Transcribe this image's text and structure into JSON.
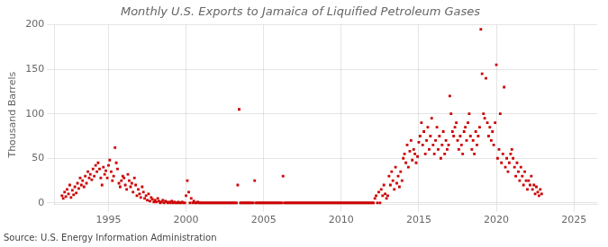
{
  "chart_data": {
    "type": "scatter",
    "title": "Monthly U.S. Exports to Jamaica of Liquified Petroleum Gases",
    "ylabel": "Thousand Barrels",
    "source": "Source: U.S. Energy Information Administration",
    "xlim": [
      1991.5,
      2026.5
    ],
    "ylim": [
      -2,
      200
    ],
    "xticks": [
      1995,
      2000,
      2005,
      2010,
      2015,
      2020,
      2025
    ],
    "yticks": [
      0,
      50,
      100,
      150,
      200
    ],
    "grid": true,
    "color": "#CC0000",
    "marker": "square",
    "x": [
      1992.0,
      1992.08,
      1992.17,
      1992.25,
      1992.33,
      1992.42,
      1992.5,
      1992.58,
      1992.67,
      1992.75,
      1992.83,
      1992.92,
      1993.0,
      1993.08,
      1993.17,
      1993.25,
      1993.33,
      1993.42,
      1993.5,
      1993.58,
      1993.67,
      1993.75,
      1993.83,
      1993.92,
      1994.0,
      1994.08,
      1994.17,
      1994.25,
      1994.33,
      1994.42,
      1994.5,
      1994.58,
      1994.67,
      1994.75,
      1994.83,
      1994.92,
      1995.0,
      1995.08,
      1995.17,
      1995.25,
      1995.33,
      1995.42,
      1995.5,
      1995.58,
      1995.67,
      1995.75,
      1995.83,
      1995.92,
      1996.0,
      1996.08,
      1996.17,
      1996.25,
      1996.33,
      1996.42,
      1996.5,
      1996.58,
      1996.67,
      1996.75,
      1996.83,
      1996.92,
      1997.0,
      1997.08,
      1997.17,
      1997.25,
      1997.33,
      1997.42,
      1997.5,
      1997.58,
      1997.67,
      1997.75,
      1997.83,
      1997.92,
      1998.0,
      1998.08,
      1998.17,
      1998.25,
      1998.33,
      1998.42,
      1998.5,
      1998.58,
      1998.67,
      1998.75,
      1998.83,
      1998.92,
      1999.0,
      1999.08,
      1999.17,
      1999.25,
      1999.33,
      1999.42,
      1999.5,
      1999.58,
      1999.67,
      1999.75,
      1999.83,
      1999.92,
      2000.0,
      2000.08,
      2000.17,
      2000.25,
      2000.33,
      2000.42,
      2000.5,
      2000.58,
      2000.67,
      2000.75,
      2000.83,
      2000.92,
      2001.0,
      2001.08,
      2001.17,
      2001.25,
      2001.33,
      2001.42,
      2001.5,
      2001.58,
      2001.67,
      2001.75,
      2001.83,
      2001.92,
      2002.0,
      2002.08,
      2002.17,
      2002.25,
      2002.33,
      2002.42,
      2002.5,
      2002.58,
      2002.67,
      2002.75,
      2002.83,
      2002.92,
      2003.0,
      2003.08,
      2003.17,
      2003.25,
      2003.33,
      2003.42,
      2003.5,
      2003.58,
      2003.67,
      2003.75,
      2003.83,
      2003.92,
      2004.0,
      2004.08,
      2004.17,
      2004.25,
      2004.33,
      2004.42,
      2004.5,
      2004.58,
      2004.67,
      2004.75,
      2004.83,
      2004.92,
      2005.0,
      2005.08,
      2005.17,
      2005.25,
      2005.33,
      2005.42,
      2005.5,
      2005.58,
      2005.67,
      2005.75,
      2005.83,
      2005.92,
      2006.0,
      2006.08,
      2006.17,
      2006.25,
      2006.33,
      2006.42,
      2006.5,
      2006.58,
      2006.67,
      2006.75,
      2006.83,
      2006.92,
      2007.0,
      2007.08,
      2007.17,
      2007.25,
      2007.33,
      2007.42,
      2007.5,
      2007.58,
      2007.67,
      2007.75,
      2007.83,
      2007.92,
      2008.0,
      2008.08,
      2008.17,
      2008.25,
      2008.33,
      2008.42,
      2008.5,
      2008.58,
      2008.67,
      2008.75,
      2008.83,
      2008.92,
      2009.0,
      2009.08,
      2009.17,
      2009.25,
      2009.33,
      2009.42,
      2009.5,
      2009.58,
      2009.67,
      2009.75,
      2009.83,
      2009.92,
      2010.0,
      2010.08,
      2010.17,
      2010.25,
      2010.33,
      2010.42,
      2010.5,
      2010.58,
      2010.67,
      2010.75,
      2010.83,
      2010.92,
      2011.0,
      2011.08,
      2011.17,
      2011.25,
      2011.33,
      2011.42,
      2011.5,
      2011.58,
      2011.67,
      2011.75,
      2011.83,
      2011.92,
      2012.0,
      2012.08,
      2012.17,
      2012.25,
      2012.33,
      2012.42,
      2012.5,
      2012.58,
      2012.67,
      2012.75,
      2012.83,
      2012.92,
      2013.0,
      2013.08,
      2013.17,
      2013.25,
      2013.33,
      2013.42,
      2013.5,
      2013.58,
      2013.67,
      2013.75,
      2013.83,
      2013.92,
      2014.0,
      2014.08,
      2014.17,
      2014.25,
      2014.33,
      2014.42,
      2014.5,
      2014.58,
      2014.67,
      2014.75,
      2014.83,
      2014.92,
      2015.0,
      2015.08,
      2015.17,
      2015.25,
      2015.33,
      2015.42,
      2015.5,
      2015.58,
      2015.67,
      2015.75,
      2015.83,
      2015.92,
      2016.0,
      2016.08,
      2016.17,
      2016.25,
      2016.33,
      2016.42,
      2016.5,
      2016.58,
      2016.67,
      2016.75,
      2016.83,
      2016.92,
      2017.0,
      2017.08,
      2017.17,
      2017.25,
      2017.33,
      2017.42,
      2017.5,
      2017.58,
      2017.67,
      2017.75,
      2017.83,
      2017.92,
      2018.0,
      2018.08,
      2018.17,
      2018.25,
      2018.33,
      2018.42,
      2018.5,
      2018.58,
      2018.67,
      2018.75,
      2018.83,
      2018.92,
      2019.0,
      2019.08,
      2019.17,
      2019.25,
      2019.33,
      2019.42,
      2019.5,
      2019.58,
      2019.67,
      2019.75,
      2019.83,
      2019.92,
      2020.0,
      2020.08,
      2020.17,
      2020.25,
      2020.33,
      2020.42,
      2020.5,
      2020.58,
      2020.67,
      2020.75,
      2020.83,
      2020.92,
      2021.0,
      2021.08,
      2021.17,
      2021.25,
      2021.33,
      2021.42,
      2021.5,
      2021.58,
      2021.67,
      2021.75,
      2021.83,
      2021.92,
      2022.0,
      2022.08,
      2022.17,
      2022.25,
      2022.33,
      2022.42,
      2022.5,
      2022.58,
      2022.67,
      2022.75,
      2022.83,
      2022.92
    ],
    "values": [
      8,
      5,
      12,
      7,
      15,
      10,
      20,
      6,
      14,
      9,
      18,
      11,
      22,
      16,
      28,
      20,
      25,
      18,
      30,
      22,
      35,
      28,
      32,
      26,
      38,
      30,
      42,
      35,
      45,
      38,
      28,
      20,
      40,
      32,
      36,
      28,
      42,
      48,
      35,
      25,
      30,
      62,
      45,
      38,
      22,
      18,
      25,
      30,
      28,
      20,
      15,
      32,
      25,
      18,
      22,
      12,
      28,
      20,
      8,
      15,
      10,
      6,
      18,
      12,
      5,
      8,
      3,
      10,
      2,
      6,
      4,
      1,
      3,
      1,
      5,
      2,
      0,
      1,
      3,
      0,
      2,
      1,
      0,
      1,
      0,
      2,
      0,
      1,
      0,
      0,
      1,
      0,
      0,
      1,
      0,
      0,
      8,
      25,
      12,
      0,
      5,
      0,
      2,
      0,
      0,
      1,
      0,
      0,
      0,
      0,
      0,
      0,
      0,
      0,
      0,
      0,
      0,
      0,
      0,
      0,
      0,
      0,
      0,
      0,
      0,
      0,
      0,
      0,
      0,
      0,
      0,
      0,
      0,
      0,
      0,
      0,
      20,
      105,
      0,
      0,
      0,
      0,
      0,
      0,
      0,
      0,
      0,
      0,
      0,
      25,
      0,
      0,
      0,
      0,
      0,
      0,
      0,
      0,
      0,
      0,
      0,
      0,
      0,
      0,
      0,
      0,
      0,
      0,
      0,
      0,
      0,
      30,
      0,
      0,
      0,
      0,
      0,
      0,
      0,
      0,
      0,
      0,
      0,
      0,
      0,
      0,
      0,
      0,
      0,
      0,
      0,
      0,
      0,
      0,
      0,
      0,
      0,
      0,
      0,
      0,
      0,
      0,
      0,
      0,
      0,
      0,
      0,
      0,
      0,
      0,
      0,
      0,
      0,
      0,
      0,
      0,
      0,
      0,
      0,
      0,
      0,
      0,
      0,
      0,
      0,
      0,
      0,
      0,
      0,
      0,
      0,
      0,
      0,
      0,
      0,
      0,
      0,
      0,
      0,
      0,
      0,
      0,
      5,
      8,
      0,
      12,
      0,
      15,
      8,
      20,
      10,
      5,
      8,
      30,
      20,
      35,
      25,
      15,
      40,
      22,
      30,
      18,
      35,
      25,
      50,
      55,
      45,
      65,
      40,
      58,
      70,
      48,
      60,
      55,
      45,
      52,
      68,
      75,
      90,
      65,
      80,
      55,
      70,
      85,
      60,
      75,
      95,
      65,
      55,
      70,
      85,
      60,
      75,
      50,
      65,
      80,
      55,
      70,
      60,
      65,
      120,
      100,
      80,
      75,
      85,
      90,
      70,
      60,
      75,
      65,
      55,
      80,
      85,
      70,
      90,
      100,
      75,
      60,
      70,
      55,
      80,
      65,
      75,
      85,
      195,
      145,
      100,
      95,
      140,
      90,
      75,
      85,
      70,
      80,
      65,
      90,
      155,
      50,
      60,
      100,
      45,
      55,
      130,
      40,
      50,
      35,
      45,
      55,
      60,
      50,
      40,
      30,
      45,
      35,
      25,
      40,
      30,
      20,
      35,
      25,
      15,
      25,
      20,
      30,
      15,
      20,
      10,
      18,
      12,
      8,
      15,
      10
    ]
  }
}
